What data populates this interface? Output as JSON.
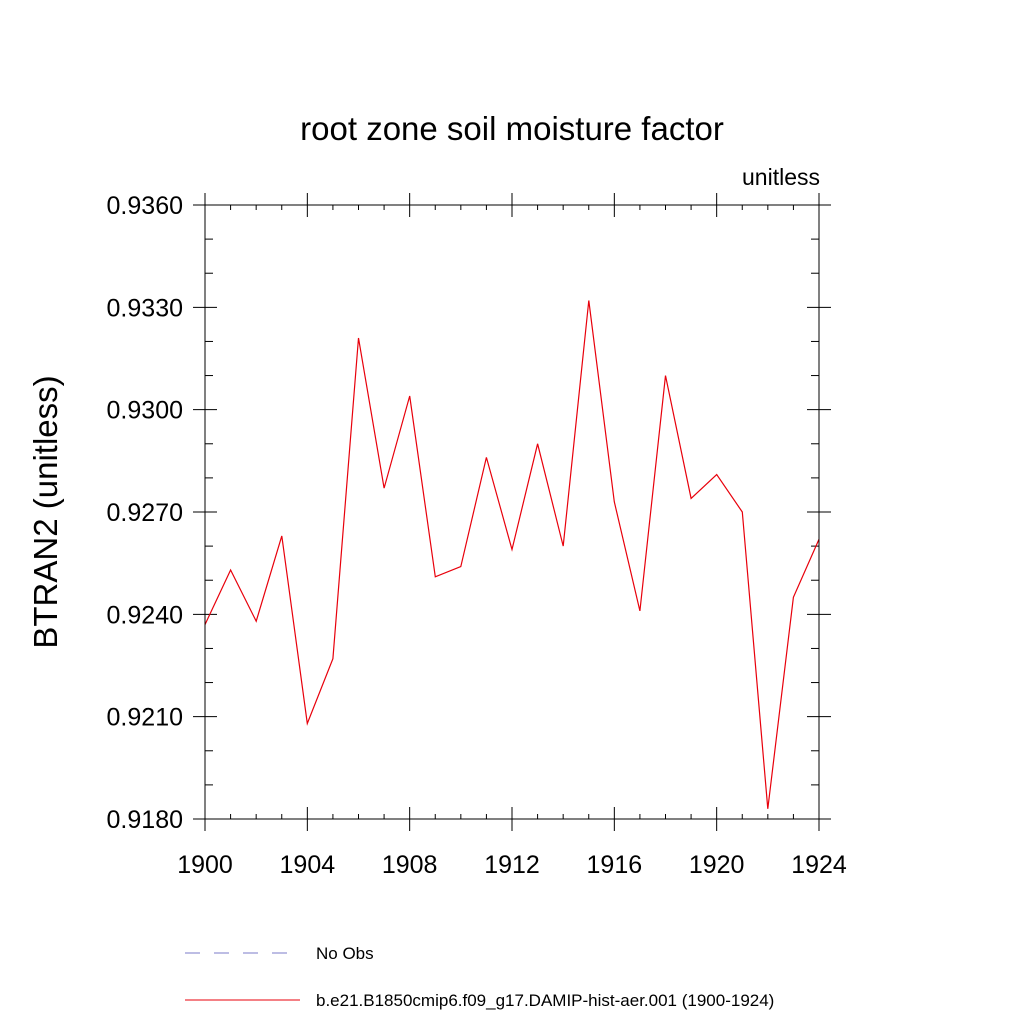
{
  "chart_data": {
    "type": "line",
    "title": "root zone soil moisture factor",
    "units_label": "unitless",
    "ylabel": "BTRAN2  (unitless)",
    "xlabel": "",
    "xlim": [
      1900,
      1924
    ],
    "ylim": [
      0.918,
      0.936
    ],
    "x_ticks": [
      1900,
      1904,
      1908,
      1912,
      1916,
      1920,
      1924
    ],
    "x_tick_labels": [
      "1900",
      "1904",
      "1908",
      "1912",
      "1916",
      "1920",
      "1924"
    ],
    "y_ticks": [
      0.918,
      0.921,
      0.924,
      0.927,
      0.93,
      0.933,
      0.936
    ],
    "y_tick_labels": [
      "0.9180",
      "0.9210",
      "0.9240",
      "0.9270",
      "0.9300",
      "0.9330",
      "0.9360"
    ],
    "y_minor_step": 0.001,
    "x_minor_step": 1,
    "grid": false,
    "legend_position": "bottom",
    "series": [
      {
        "name": "b.e21.B1850cmip6.f09_g17.DAMIP-hist-aer.001 (1900-1924)",
        "color": "#e8000b",
        "style": "solid",
        "x": [
          1900,
          1901,
          1902,
          1903,
          1904,
          1905,
          1906,
          1907,
          1908,
          1909,
          1910,
          1911,
          1912,
          1913,
          1914,
          1915,
          1916,
          1917,
          1918,
          1919,
          1920,
          1921,
          1922,
          1923,
          1924
        ],
        "y": [
          0.9237,
          0.9253,
          0.9238,
          0.9263,
          0.9208,
          0.9227,
          0.9321,
          0.9277,
          0.9304,
          0.9251,
          0.9254,
          0.9286,
          0.9259,
          0.929,
          0.926,
          0.9332,
          0.9273,
          0.9241,
          0.931,
          0.9274,
          0.9281,
          0.927,
          0.9183,
          0.9245,
          0.9262
        ]
      }
    ],
    "legend": [
      {
        "label": "No Obs",
        "color": "#7b7bc8",
        "style": "dashed"
      },
      {
        "label": "b.e21.B1850cmip6.f09_g17.DAMIP-hist-aer.001 (1900-1924)",
        "color": "#e8000b",
        "style": "solid"
      }
    ]
  }
}
